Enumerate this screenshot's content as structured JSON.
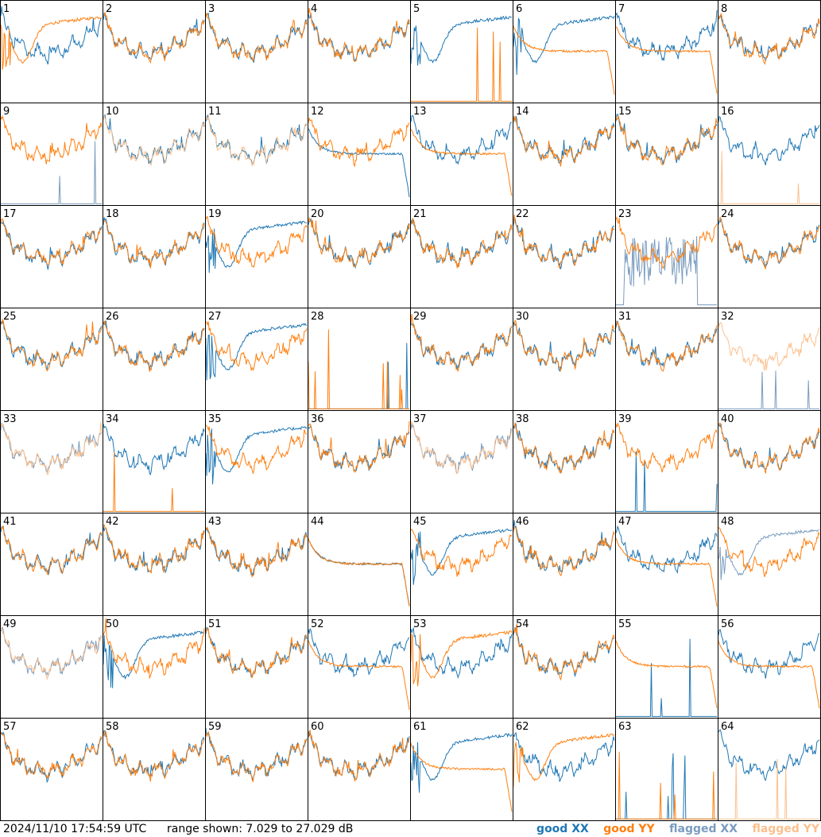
{
  "footer": {
    "timestamp": "2024/11/10 17:54:59 UTC",
    "range_text": "range shown: 7.029 to 27.029 dB"
  },
  "legend": [
    {
      "label": "good XX",
      "color": "#1f77b4"
    },
    {
      "label": "good YY",
      "color": "#ff7f0e"
    },
    {
      "label": "flagged XX",
      "color": "#7a9cbf"
    },
    {
      "label": "flagged YY",
      "color": "#fbc08e"
    }
  ],
  "chart_data": {
    "type": "line",
    "layout": "8x8 small multiples",
    "ylim": [
      7.029,
      27.029
    ],
    "y_unit": "dB",
    "grid": false,
    "panels": [
      {
        "id": "1",
        "xx": "good",
        "yy": "good",
        "xx_shape": "normal",
        "yy_shape": "dip"
      },
      {
        "id": "2",
        "xx": "good",
        "yy": "good",
        "xx_shape": "normal",
        "yy_shape": "normal"
      },
      {
        "id": "3",
        "xx": "good",
        "yy": "good",
        "xx_shape": "normal",
        "yy_shape": "normal"
      },
      {
        "id": "4",
        "xx": "good",
        "yy": "good",
        "xx_shape": "normal",
        "yy_shape": "normal"
      },
      {
        "id": "5",
        "xx": "good",
        "yy": "good",
        "xx_shape": "dip",
        "yy_shape": "spikes"
      },
      {
        "id": "6",
        "xx": "good",
        "yy": "good",
        "xx_shape": "dip",
        "yy_shape": "flat"
      },
      {
        "id": "7",
        "xx": "good",
        "yy": "good",
        "xx_shape": "normal",
        "yy_shape": "flat"
      },
      {
        "id": "8",
        "xx": "good",
        "yy": "good",
        "xx_shape": "normal",
        "yy_shape": "normal"
      },
      {
        "id": "9",
        "xx": "flagged",
        "yy": "good",
        "xx_shape": "spikes",
        "yy_shape": "normal"
      },
      {
        "id": "10",
        "xx": "good",
        "yy": "flagged",
        "xx_shape": "normal",
        "yy_shape": "normal"
      },
      {
        "id": "11",
        "xx": "good",
        "yy": "flagged",
        "xx_shape": "normal",
        "yy_shape": "normal"
      },
      {
        "id": "12",
        "xx": "good",
        "yy": "good",
        "xx_shape": "flat",
        "yy_shape": "normal"
      },
      {
        "id": "13",
        "xx": "good",
        "yy": "good",
        "xx_shape": "normal",
        "yy_shape": "flat"
      },
      {
        "id": "14",
        "xx": "good",
        "yy": "good",
        "xx_shape": "normal",
        "yy_shape": "normal"
      },
      {
        "id": "15",
        "xx": "good",
        "yy": "good",
        "xx_shape": "normal",
        "yy_shape": "normal"
      },
      {
        "id": "16",
        "xx": "good",
        "yy": "flagged",
        "xx_shape": "normal",
        "yy_shape": "spikes"
      },
      {
        "id": "17",
        "xx": "good",
        "yy": "good",
        "xx_shape": "normal",
        "yy_shape": "normal"
      },
      {
        "id": "18",
        "xx": "good",
        "yy": "good",
        "xx_shape": "normal",
        "yy_shape": "normal"
      },
      {
        "id": "19",
        "xx": "good",
        "yy": "good",
        "xx_shape": "dip",
        "yy_shape": "normal"
      },
      {
        "id": "20",
        "xx": "good",
        "yy": "good",
        "xx_shape": "normal",
        "yy_shape": "normal"
      },
      {
        "id": "21",
        "xx": "good",
        "yy": "good",
        "xx_shape": "normal",
        "yy_shape": "normal"
      },
      {
        "id": "22",
        "xx": "good",
        "yy": "good",
        "xx_shape": "normal",
        "yy_shape": "normal"
      },
      {
        "id": "23",
        "xx": "flagged",
        "yy": "good",
        "xx_shape": "noisy",
        "yy_shape": "normal"
      },
      {
        "id": "24",
        "xx": "good",
        "yy": "good",
        "xx_shape": "normal",
        "yy_shape": "normal"
      },
      {
        "id": "25",
        "xx": "good",
        "yy": "good",
        "xx_shape": "normal",
        "yy_shape": "normal"
      },
      {
        "id": "26",
        "xx": "good",
        "yy": "good",
        "xx_shape": "normal",
        "yy_shape": "normal"
      },
      {
        "id": "27",
        "xx": "good",
        "yy": "good",
        "xx_shape": "dip",
        "yy_shape": "normal"
      },
      {
        "id": "28",
        "xx": "good",
        "yy": "good",
        "xx_shape": "spikes",
        "yy_shape": "spikes"
      },
      {
        "id": "29",
        "xx": "good",
        "yy": "good",
        "xx_shape": "normal",
        "yy_shape": "normal"
      },
      {
        "id": "30",
        "xx": "good",
        "yy": "good",
        "xx_shape": "normal",
        "yy_shape": "normal"
      },
      {
        "id": "31",
        "xx": "good",
        "yy": "good",
        "xx_shape": "normal",
        "yy_shape": "normal"
      },
      {
        "id": "32",
        "xx": "flagged",
        "yy": "flagged",
        "xx_shape": "spikes",
        "yy_shape": "normal"
      },
      {
        "id": "33",
        "xx": "flagged",
        "yy": "flagged",
        "xx_shape": "normal",
        "yy_shape": "normal"
      },
      {
        "id": "34",
        "xx": "good",
        "yy": "good",
        "xx_shape": "normal",
        "yy_shape": "spikes"
      },
      {
        "id": "35",
        "xx": "good",
        "yy": "good",
        "xx_shape": "dip",
        "yy_shape": "normal"
      },
      {
        "id": "36",
        "xx": "good",
        "yy": "good",
        "xx_shape": "normal",
        "yy_shape": "normal"
      },
      {
        "id": "37",
        "xx": "flagged",
        "yy": "flagged",
        "xx_shape": "normal",
        "yy_shape": "normal"
      },
      {
        "id": "38",
        "xx": "good",
        "yy": "good",
        "xx_shape": "normal",
        "yy_shape": "normal"
      },
      {
        "id": "39",
        "xx": "good",
        "yy": "good",
        "xx_shape": "spikes",
        "yy_shape": "normal"
      },
      {
        "id": "40",
        "xx": "good",
        "yy": "good",
        "xx_shape": "normal",
        "yy_shape": "normal"
      },
      {
        "id": "41",
        "xx": "good",
        "yy": "good",
        "xx_shape": "normal",
        "yy_shape": "normal"
      },
      {
        "id": "42",
        "xx": "good",
        "yy": "good",
        "xx_shape": "normal",
        "yy_shape": "normal"
      },
      {
        "id": "43",
        "xx": "good",
        "yy": "good",
        "xx_shape": "normal",
        "yy_shape": "normal"
      },
      {
        "id": "44",
        "xx": "good",
        "yy": "good",
        "xx_shape": "flat",
        "yy_shape": "flat"
      },
      {
        "id": "45",
        "xx": "good",
        "yy": "good",
        "xx_shape": "dip",
        "yy_shape": "normal"
      },
      {
        "id": "46",
        "xx": "good",
        "yy": "good",
        "xx_shape": "normal",
        "yy_shape": "normal"
      },
      {
        "id": "47",
        "xx": "good",
        "yy": "good",
        "xx_shape": "normal",
        "yy_shape": "flat"
      },
      {
        "id": "48",
        "xx": "flagged",
        "yy": "good",
        "xx_shape": "dip",
        "yy_shape": "normal"
      },
      {
        "id": "49",
        "xx": "flagged",
        "yy": "flagged",
        "xx_shape": "normal",
        "yy_shape": "normal"
      },
      {
        "id": "50",
        "xx": "good",
        "yy": "good",
        "xx_shape": "dip",
        "yy_shape": "normal"
      },
      {
        "id": "51",
        "xx": "good",
        "yy": "good",
        "xx_shape": "normal",
        "yy_shape": "normal"
      },
      {
        "id": "52",
        "xx": "good",
        "yy": "good",
        "xx_shape": "normal",
        "yy_shape": "flat"
      },
      {
        "id": "53",
        "xx": "good",
        "yy": "good",
        "xx_shape": "normal",
        "yy_shape": "dip"
      },
      {
        "id": "54",
        "xx": "good",
        "yy": "good",
        "xx_shape": "normal",
        "yy_shape": "normal"
      },
      {
        "id": "55",
        "xx": "good",
        "yy": "good",
        "xx_shape": "spikes",
        "yy_shape": "flat"
      },
      {
        "id": "56",
        "xx": "good",
        "yy": "good",
        "xx_shape": "normal",
        "yy_shape": "flat"
      },
      {
        "id": "57",
        "xx": "good",
        "yy": "good",
        "xx_shape": "normal",
        "yy_shape": "normal"
      },
      {
        "id": "58",
        "xx": "good",
        "yy": "good",
        "xx_shape": "normal",
        "yy_shape": "normal"
      },
      {
        "id": "59",
        "xx": "good",
        "yy": "good",
        "xx_shape": "normal",
        "yy_shape": "normal"
      },
      {
        "id": "60",
        "xx": "good",
        "yy": "good",
        "xx_shape": "normal",
        "yy_shape": "normal"
      },
      {
        "id": "61",
        "xx": "good",
        "yy": "good",
        "xx_shape": "dip",
        "yy_shape": "flat"
      },
      {
        "id": "62",
        "xx": "good",
        "yy": "good",
        "xx_shape": "normal",
        "yy_shape": "dip"
      },
      {
        "id": "63",
        "xx": "good",
        "yy": "good",
        "xx_shape": "spikes",
        "yy_shape": "spikes"
      },
      {
        "id": "64",
        "xx": "good",
        "yy": "flagged",
        "xx_shape": "normal",
        "yy_shape": "spikes"
      }
    ]
  }
}
